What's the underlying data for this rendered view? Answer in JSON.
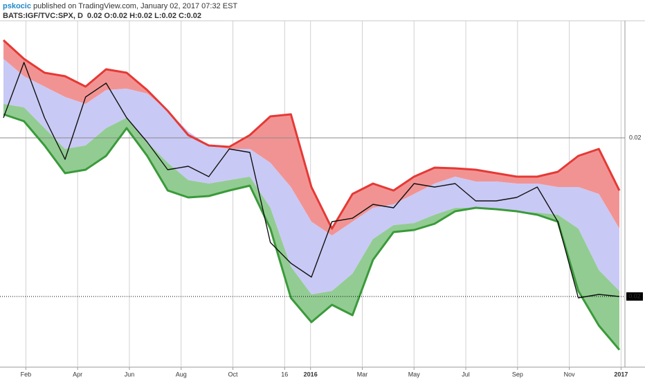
{
  "header": {
    "author": "pskocic",
    "published": "published on TradingView.com, January 02, 2017 07:32 EST",
    "symbol": "BATS:IGF/TVC:SPX, D",
    "ohlc": "0.02 O:0.02 H:0.02 L:0.02 C:0.02"
  },
  "chart_data": {
    "type": "line",
    "xlim": [
      0,
      24.15
    ],
    "xticks": [
      {
        "value": 1,
        "label": "Feb"
      },
      {
        "value": 3,
        "label": "Apr"
      },
      {
        "value": 5,
        "label": "Jun"
      },
      {
        "value": 7,
        "label": "Aug"
      },
      {
        "value": 9,
        "label": "Oct"
      },
      {
        "value": 11,
        "label": "16"
      },
      {
        "value": 12,
        "label": "2016"
      },
      {
        "value": 14,
        "label": "Mar"
      },
      {
        "value": 16,
        "label": "May"
      },
      {
        "value": 18,
        "label": "Jul"
      },
      {
        "value": 20,
        "label": "Sep"
      },
      {
        "value": 22,
        "label": "Nov"
      },
      {
        "value": 24,
        "label": "2017"
      }
    ],
    "ylim": [
      0.018345,
      0.020845
    ],
    "yticks": [
      0.02
    ],
    "grid": true,
    "bands": [
      {
        "color": "#e53935",
        "fill": "#f29393",
        "values": [
          0.020705,
          0.02057,
          0.02047,
          0.020445,
          0.02037,
          0.020495,
          0.02047,
          0.020345,
          0.020195,
          0.02002,
          0.019945,
          0.019935,
          0.02002,
          0.020155,
          0.02017,
          0.019645,
          0.019345,
          0.019595,
          0.01967,
          0.01962,
          0.01972,
          0.019785,
          0.01978,
          0.01977,
          0.019745,
          0.01972,
          0.01972,
          0.019755,
          0.01987,
          0.01992,
          0.01962
        ]
      },
      {
        "fill": "#c9c9f5",
        "values": [
          0.02057,
          0.020445,
          0.02037,
          0.020295,
          0.020245,
          0.020345,
          0.020355,
          0.02032,
          0.020195,
          0.020045,
          0.019945,
          0.01992,
          0.01992,
          0.01982,
          0.019645,
          0.019395,
          0.019295,
          0.019395,
          0.019495,
          0.01952,
          0.019595,
          0.01967,
          0.01972,
          0.019685,
          0.019685,
          0.01967,
          0.01967,
          0.019645,
          0.019645,
          0.019595,
          0.019345
        ]
      },
      {
        "fill": "#92cc92",
        "values": [
          0.020245,
          0.02022,
          0.02007,
          0.01992,
          0.019945,
          0.02007,
          0.020145,
          0.01997,
          0.01982,
          0.019695,
          0.01967,
          0.019695,
          0.01972,
          0.019495,
          0.01907,
          0.01887,
          0.018895,
          0.01902,
          0.01927,
          0.01937,
          0.019385,
          0.019445,
          0.019495,
          0.019495,
          0.019485,
          0.01947,
          0.01946,
          0.019445,
          0.019345,
          0.019045,
          0.018895
        ]
      },
      {
        "color": "#3a9a3a",
        "values": [
          0.02017,
          0.02012,
          0.019945,
          0.019745,
          0.01977,
          0.01987,
          0.02007,
          0.01987,
          0.01962,
          0.01957,
          0.01958,
          0.01962,
          0.019655,
          0.019345,
          0.018845,
          0.01867,
          0.018795,
          0.01872,
          0.01912,
          0.01932,
          0.019335,
          0.01938,
          0.01947,
          0.019495,
          0.019485,
          0.01947,
          0.019445,
          0.019395,
          0.018895,
          0.018645,
          0.01847
        ]
      }
    ],
    "series": [
      {
        "color": "#111111",
        "values": [
          0.020145,
          0.020545,
          0.020145,
          0.019845,
          0.020295,
          0.020395,
          0.020145,
          0.01997,
          0.01977,
          0.019795,
          0.01972,
          0.01992,
          0.019895,
          0.019245,
          0.019095,
          0.018995,
          0.019395,
          0.01942,
          0.01952,
          0.019495,
          0.01967,
          0.019645,
          0.01967,
          0.019545,
          0.019545,
          0.01957,
          0.019645,
          0.019395,
          0.018845,
          0.01887,
          0.018855
        ]
      }
    ],
    "last_price": {
      "value": 0.018855,
      "label": "0.02"
    }
  }
}
